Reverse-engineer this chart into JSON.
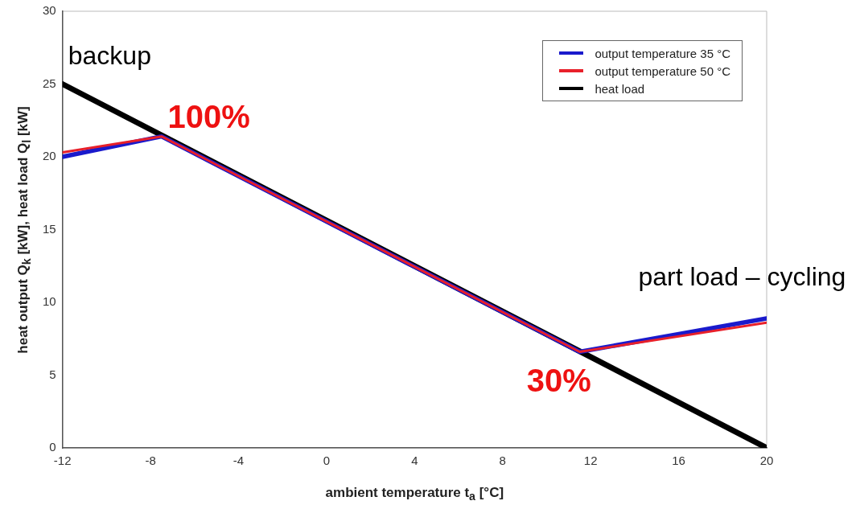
{
  "chart_data": {
    "type": "line",
    "xlabel": "ambient temperature t$_{a}$ [°C]",
    "ylabel": "heat output Q$_{k}$ [kW], heat load Q$_{l}$ [kW]",
    "xlim": [
      -12,
      20
    ],
    "xticks": [
      -12,
      -8,
      -4,
      0,
      4,
      8,
      12,
      16,
      20
    ],
    "ylim": [
      0,
      30
    ],
    "yticks": [
      0,
      5,
      10,
      15,
      20,
      25,
      30
    ],
    "grid": false,
    "legend": "top right",
    "marker": "none",
    "line_style": "solid",
    "series": [
      {
        "name": "output temperature 35 °C",
        "color": "#1a1acc",
        "x": [
          -12,
          -7.5,
          11.5,
          20
        ],
        "values": [
          20.0,
          21.4,
          6.6,
          8.9
        ]
      },
      {
        "name": "output temperature 50 °C",
        "color": "#e8202a",
        "x": [
          -12,
          -7.5,
          11.5,
          20
        ],
        "values": [
          20.3,
          21.4,
          6.6,
          8.6
        ]
      },
      {
        "name": "heat load",
        "color": "#000000",
        "x": [
          -12,
          20
        ],
        "values": [
          25,
          0
        ]
      }
    ],
    "annotations": [
      "backup",
      "100%",
      "30%",
      "part load – cycling"
    ]
  }
}
